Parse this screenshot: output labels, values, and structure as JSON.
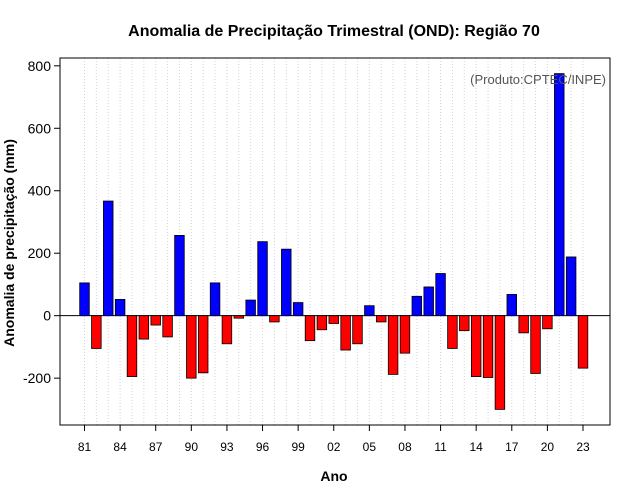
{
  "chart_data": {
    "type": "bar",
    "title": "Anomalia de Precipitação Trimestral (OND): Região 70",
    "xlabel": "Ano",
    "ylabel": "Anomalia de precipitação (mm)",
    "credit": "(Produto:CPTEC/INPE)",
    "ylim": [
      -350,
      825
    ],
    "yticks": [
      -200,
      0,
      200,
      400,
      600,
      800
    ],
    "xtick_labels": [
      "81",
      "84",
      "87",
      "90",
      "93",
      "96",
      "99",
      "02",
      "05",
      "08",
      "11",
      "14",
      "17",
      "20",
      "23"
    ],
    "xtick_every": 3,
    "grid": true,
    "positive_color": "#0000ff",
    "negative_color": "#ff0000",
    "categories": [
      "1981",
      "1982",
      "1983",
      "1984",
      "1985",
      "1986",
      "1987",
      "1988",
      "1989",
      "1990",
      "1991",
      "1992",
      "1993",
      "1994",
      "1995",
      "1996",
      "1997",
      "1998",
      "1999",
      "2000",
      "2001",
      "2002",
      "2003",
      "2004",
      "2005",
      "2006",
      "2007",
      "2008",
      "2009",
      "2010",
      "2011",
      "2012",
      "2013",
      "2014",
      "2015",
      "2016",
      "2017",
      "2018",
      "2019",
      "2020",
      "2021",
      "2022",
      "2023"
    ],
    "values": [
      105,
      -105,
      367,
      52,
      -195,
      -75,
      -30,
      -68,
      257,
      -200,
      -183,
      105,
      -90,
      -8,
      50,
      237,
      -20,
      213,
      42,
      -80,
      -45,
      -25,
      -110,
      -90,
      32,
      -20,
      -188,
      -120,
      62,
      92,
      135,
      -105,
      -48,
      -195,
      -198,
      -300,
      68,
      -55,
      -185,
      -42,
      775,
      188,
      -168
    ]
  }
}
